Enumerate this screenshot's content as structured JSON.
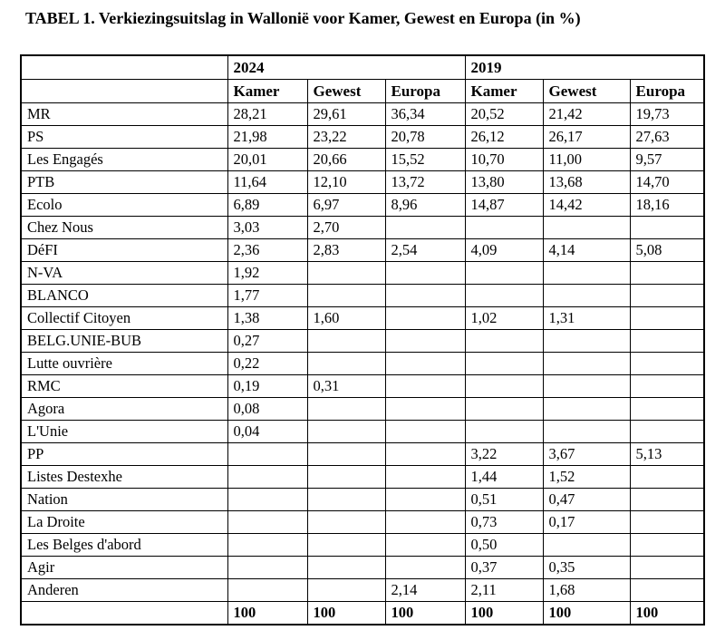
{
  "title": "TABEL 1. Verkiezingsuitslag in Wallonië voor Kamer, Gewest en Europa (in %)",
  "table": {
    "year_headers": [
      "2024",
      "2019"
    ],
    "sub_headers": [
      "Kamer",
      "Gewest",
      "Europa",
      "Kamer",
      "Gewest",
      "Europa"
    ],
    "rows": [
      {
        "party": "MR",
        "values": [
          "28,21",
          "29,61",
          "36,34",
          "20,52",
          "21,42",
          "19,73"
        ]
      },
      {
        "party": "PS",
        "values": [
          "21,98",
          "23,22",
          "20,78",
          "26,12",
          "26,17",
          "27,63"
        ]
      },
      {
        "party": "Les Engagés",
        "values": [
          "20,01",
          "20,66",
          "15,52",
          "10,70",
          "11,00",
          "9,57"
        ]
      },
      {
        "party": "PTB",
        "values": [
          "11,64",
          "12,10",
          "13,72",
          "13,80",
          "13,68",
          "14,70"
        ]
      },
      {
        "party": "Ecolo",
        "values": [
          "6,89",
          "6,97",
          "8,96",
          "14,87",
          "14,42",
          "18,16"
        ]
      },
      {
        "party": "Chez Nous",
        "values": [
          "3,03",
          "2,70",
          "",
          "",
          "",
          ""
        ]
      },
      {
        "party": "DéFI",
        "values": [
          "2,36",
          "2,83",
          "2,54",
          "4,09",
          "4,14",
          "5,08"
        ]
      },
      {
        "party": "N-VA",
        "values": [
          "1,92",
          "",
          "",
          "",
          "",
          ""
        ]
      },
      {
        "party": "BLANCO",
        "values": [
          "1,77",
          "",
          "",
          "",
          "",
          ""
        ]
      },
      {
        "party": "Collectif Citoyen",
        "values": [
          "1,38",
          "1,60",
          "",
          "1,02",
          "1,31",
          ""
        ]
      },
      {
        "party": "BELG.UNIE-BUB",
        "values": [
          "0,27",
          "",
          "",
          "",
          "",
          ""
        ]
      },
      {
        "party": "Lutte ouvrière",
        "values": [
          "0,22",
          "",
          "",
          "",
          "",
          ""
        ]
      },
      {
        "party": "RMC",
        "values": [
          "0,19",
          "0,31",
          "",
          "",
          "",
          ""
        ]
      },
      {
        "party": "Agora",
        "values": [
          "0,08",
          "",
          "",
          "",
          "",
          ""
        ]
      },
      {
        "party": "L'Unie",
        "values": [
          "0,04",
          "",
          "",
          "",
          "",
          ""
        ]
      },
      {
        "party": "PP",
        "values": [
          "",
          "",
          "",
          "3,22",
          "3,67",
          "5,13"
        ]
      },
      {
        "party": "Listes Destexhe",
        "values": [
          "",
          "",
          "",
          "1,44",
          "1,52",
          ""
        ]
      },
      {
        "party": "Nation",
        "values": [
          "",
          "",
          "",
          "0,51",
          "0,47",
          ""
        ]
      },
      {
        "party": "La Droite",
        "values": [
          "",
          "",
          "",
          "0,73",
          "0,17",
          ""
        ]
      },
      {
        "party": "Les Belges d'abord",
        "values": [
          "",
          "",
          "",
          "0,50",
          "",
          ""
        ]
      },
      {
        "party": "Agir",
        "values": [
          "",
          "",
          "",
          "0,37",
          "0,35",
          ""
        ]
      },
      {
        "party": "Anderen",
        "values": [
          "",
          "",
          "2,14",
          "2,11",
          "1,68",
          ""
        ]
      }
    ],
    "totals": [
      "100",
      "100",
      "100",
      "100",
      "100",
      "100"
    ],
    "colors": {
      "text": "#000000",
      "border": "#000000",
      "background": "#ffffff"
    }
  }
}
